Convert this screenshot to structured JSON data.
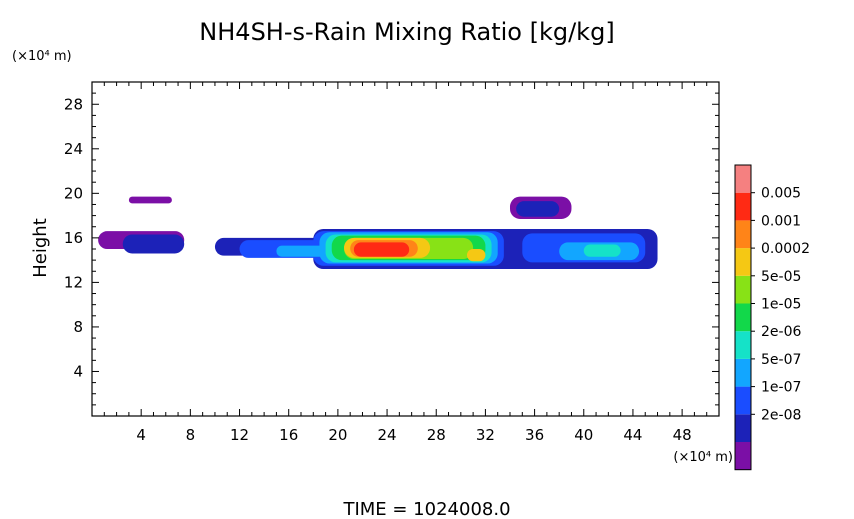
{
  "chart_data": {
    "type": "heatmap",
    "title": "NH4SH-s-Rain Mixing Ratio [kg/kg]",
    "ylabel": "Height",
    "y_unit": "(×10⁴ m)",
    "x_unit": "(×10⁴ m)",
    "footer": "TIME = 1024008.0",
    "xlim": [
      0,
      51
    ],
    "ylim": [
      0,
      30
    ],
    "x_ticks": [
      4,
      8,
      12,
      16,
      20,
      24,
      28,
      32,
      36,
      40,
      44,
      48
    ],
    "y_ticks": [
      4,
      8,
      12,
      16,
      20,
      24,
      28
    ],
    "colorbar": {
      "labels": [
        "0.005",
        "0.001",
        "0.0002",
        "5e-05",
        "1e-05",
        "2e-06",
        "5e-07",
        "1e-07",
        "2e-08"
      ],
      "colors": [
        "#7b0fa6",
        "#1c22b8",
        "#1a4dff",
        "#12a6ff",
        "#15e2c8",
        "#12d84a",
        "#88e216",
        "#f5c814",
        "#ff8418",
        "#ff2a14",
        "#f58080"
      ]
    },
    "level_colors": [
      "#7b0fa6",
      "#1c22b8",
      "#1a4dff",
      "#12a6ff",
      "#15e2c8",
      "#12d84a",
      "#88e216",
      "#f5c814",
      "#ff8418",
      "#ff2a14"
    ],
    "regions": [
      {
        "x": [
          0.5,
          7.5
        ],
        "y": [
          15.0,
          16.6
        ],
        "level": 0
      },
      {
        "x": [
          3.0,
          6.5
        ],
        "y": [
          19.1,
          19.7
        ],
        "level": 0
      },
      {
        "x": [
          2.5,
          7.5
        ],
        "y": [
          14.6,
          16.3
        ],
        "level": 1
      },
      {
        "x": [
          10.0,
          19.0
        ],
        "y": [
          14.4,
          16.0
        ],
        "level": 1
      },
      {
        "x": [
          18.0,
          46.0
        ],
        "y": [
          13.2,
          16.8
        ],
        "level": 1
      },
      {
        "x": [
          34.0,
          39.0
        ],
        "y": [
          17.7,
          19.7
        ],
        "level": 0
      },
      {
        "x": [
          34.5,
          38.0
        ],
        "y": [
          17.9,
          19.3
        ],
        "level": 1
      },
      {
        "x": [
          12.0,
          19.0
        ],
        "y": [
          14.2,
          15.8
        ],
        "level": 2
      },
      {
        "x": [
          18.0,
          33.5
        ],
        "y": [
          13.5,
          16.6
        ],
        "level": 2
      },
      {
        "x": [
          35.0,
          45.0
        ],
        "y": [
          13.8,
          16.4
        ],
        "level": 2
      },
      {
        "x": [
          15.0,
          19.0
        ],
        "y": [
          14.3,
          15.3
        ],
        "level": 3
      },
      {
        "x": [
          18.5,
          33.0
        ],
        "y": [
          13.7,
          16.5
        ],
        "level": 3
      },
      {
        "x": [
          38.0,
          44.5
        ],
        "y": [
          14.0,
          15.6
        ],
        "level": 3
      },
      {
        "x": [
          19.0,
          32.5
        ],
        "y": [
          13.8,
          16.3
        ],
        "level": 4
      },
      {
        "x": [
          40.0,
          43.0
        ],
        "y": [
          14.3,
          15.4
        ],
        "level": 4
      },
      {
        "x": [
          19.5,
          32.0
        ],
        "y": [
          14.0,
          16.2
        ],
        "level": 5
      },
      {
        "x": [
          20.5,
          31.0
        ],
        "y": [
          14.1,
          16.0
        ],
        "level": 6
      },
      {
        "x": [
          20.5,
          27.5
        ],
        "y": [
          14.2,
          16.0
        ],
        "level": 7
      },
      {
        "x": [
          30.5,
          32.0
        ],
        "y": [
          13.9,
          15.0
        ],
        "level": 7
      },
      {
        "x": [
          21.0,
          26.5
        ],
        "y": [
          14.3,
          15.8
        ],
        "level": 8
      },
      {
        "x": [
          21.3,
          25.8
        ],
        "y": [
          14.3,
          15.6
        ],
        "level": 9
      }
    ]
  }
}
